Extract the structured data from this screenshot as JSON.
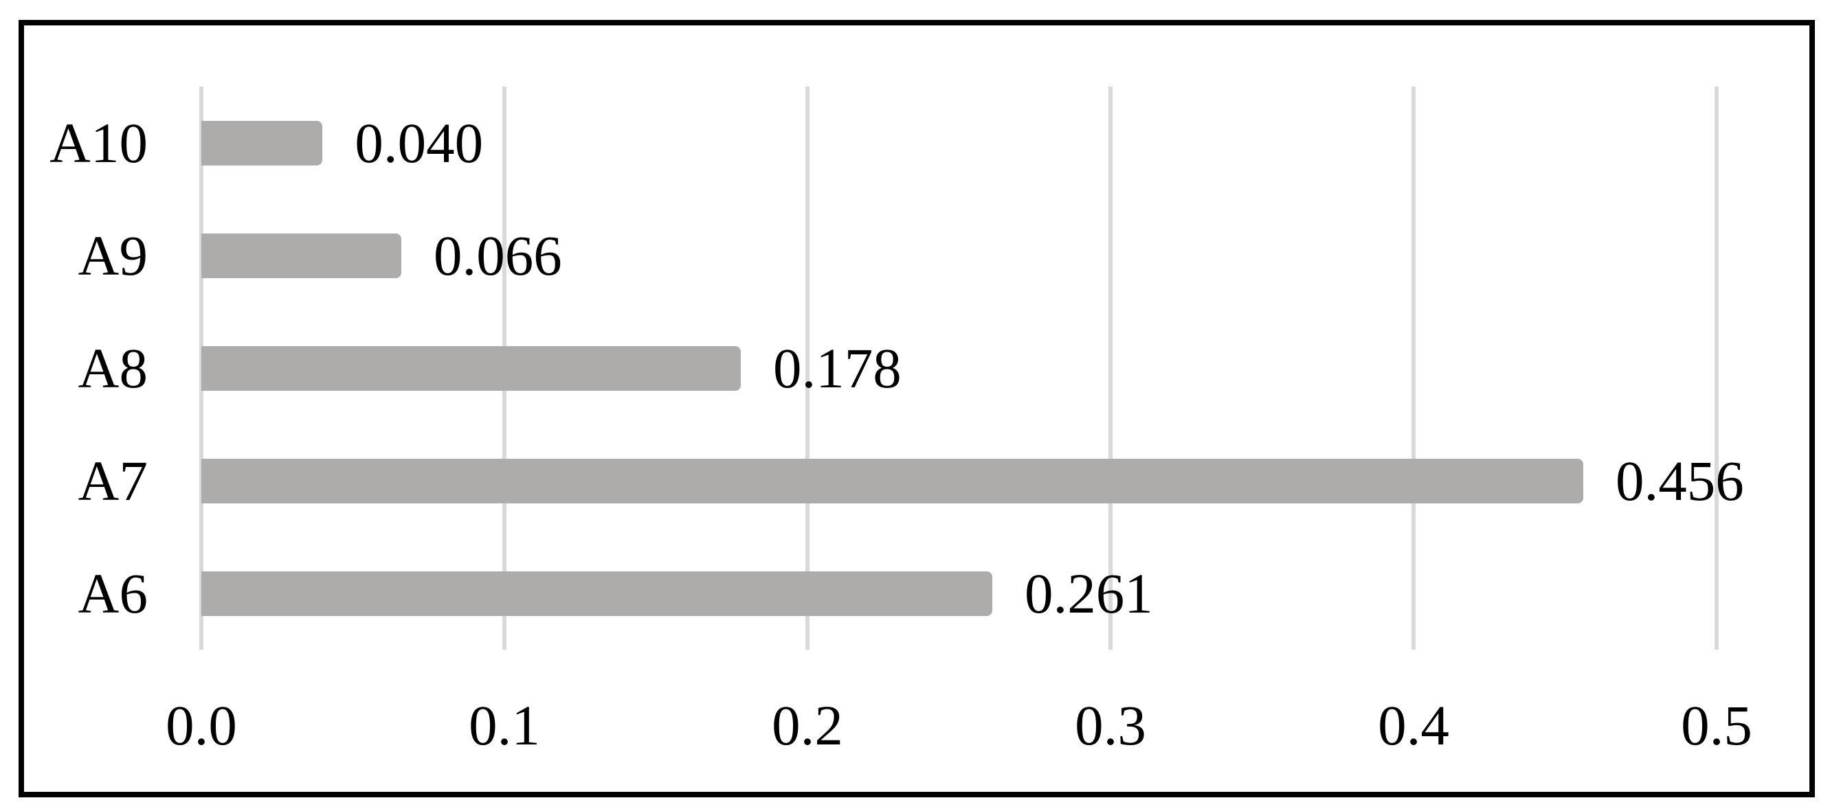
{
  "figure": {
    "background": "#ffffff"
  },
  "chart_data": {
    "type": "bar",
    "orientation": "horizontal",
    "title": "",
    "xlabel": "",
    "ylabel": "",
    "categories": [
      "A10",
      "A9",
      "A8",
      "A7",
      "A6"
    ],
    "values": [
      0.04,
      0.066,
      0.178,
      0.456,
      0.261
    ],
    "value_labels": [
      "0.040",
      "0.066",
      "0.178",
      "0.456",
      "0.261"
    ],
    "xlim": [
      0.0,
      0.5
    ],
    "x_ticks": [
      0.0,
      0.1,
      0.2,
      0.3,
      0.4,
      0.5
    ],
    "x_tick_labels": [
      "0.0",
      "0.1",
      "0.2",
      "0.3",
      "0.4",
      "0.5"
    ],
    "grid": "vertical-gridlines-on",
    "legend": "none",
    "data_labels": "outside-end",
    "colors": {
      "bar_fill": "#aeabab",
      "gridline": "#d9d9d9",
      "text": "#000000",
      "frame_border": "#000000"
    }
  }
}
